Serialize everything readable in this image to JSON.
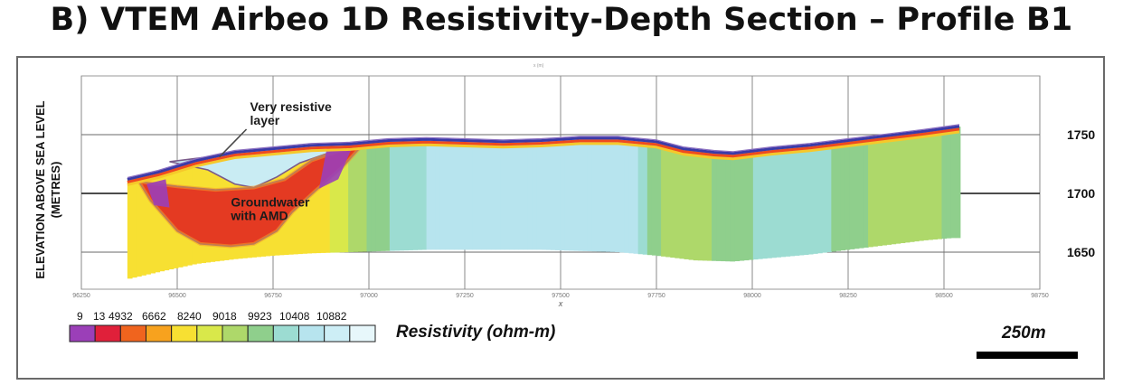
{
  "title": "B) VTEM Airbeo 1D Resistivity-Depth Section – Profile B1",
  "top_axis_label": "x (m)",
  "chart_data": {
    "type": "heatmap",
    "title": "B) VTEM Airbeo 1D Resistivity-Depth Section – Profile B1",
    "ylabel": "ELEVATION ABOVE SEA LEVEL (METRES)",
    "xlabel": "X",
    "x_ticks": [
      96250,
      96500,
      96750,
      97000,
      97250,
      97500,
      97750,
      98000,
      98250,
      98500,
      98750
    ],
    "x_tick_labels": [
      "96250",
      "96500",
      "96750",
      "97000",
      "97250",
      "97500",
      "97750",
      "98000",
      "98250",
      "98500",
      "98750"
    ],
    "y_ticks": [
      1650,
      1700,
      1750
    ],
    "y_tick_labels": [
      "1650",
      "1700",
      "1750"
    ],
    "xlim": [
      96250,
      98750
    ],
    "ylim": [
      1610,
      1800
    ],
    "grid": true,
    "surface_profile": [
      [
        96370,
        1712
      ],
      [
        96450,
        1718
      ],
      [
        96550,
        1728
      ],
      [
        96650,
        1735
      ],
      [
        96750,
        1738
      ],
      [
        96850,
        1741
      ],
      [
        96950,
        1742
      ],
      [
        97050,
        1745
      ],
      [
        97150,
        1746
      ],
      [
        97250,
        1745
      ],
      [
        97350,
        1744
      ],
      [
        97450,
        1745
      ],
      [
        97550,
        1747
      ],
      [
        97650,
        1747
      ],
      [
        97750,
        1744
      ],
      [
        97820,
        1738
      ],
      [
        97900,
        1735
      ],
      [
        97950,
        1734
      ],
      [
        98050,
        1738
      ],
      [
        98150,
        1741
      ],
      [
        98250,
        1745
      ],
      [
        98350,
        1749
      ],
      [
        98450,
        1753
      ],
      [
        98540,
        1757
      ]
    ],
    "base_profile": [
      [
        96370,
        1627
      ],
      [
        96450,
        1633
      ],
      [
        96550,
        1640
      ],
      [
        96650,
        1644
      ],
      [
        96750,
        1647
      ],
      [
        96850,
        1649
      ],
      [
        96950,
        1650
      ],
      [
        97050,
        1651
      ],
      [
        97150,
        1652
      ],
      [
        97250,
        1652
      ],
      [
        97350,
        1652
      ],
      [
        97450,
        1652
      ],
      [
        97550,
        1651
      ],
      [
        97650,
        1650
      ],
      [
        97750,
        1647
      ],
      [
        97850,
        1643
      ],
      [
        97950,
        1642
      ],
      [
        98050,
        1645
      ],
      [
        98150,
        1648
      ],
      [
        98250,
        1652
      ],
      [
        98350,
        1656
      ],
      [
        98450,
        1660
      ],
      [
        98520,
        1662
      ]
    ],
    "column_resistivity": [
      [
        96370,
        6662
      ],
      [
        96500,
        4932
      ],
      [
        96650,
        4932
      ],
      [
        96800,
        4932
      ],
      [
        96900,
        6662
      ],
      [
        96950,
        8240
      ],
      [
        97000,
        9018
      ],
      [
        97050,
        9923
      ],
      [
        97150,
        10408
      ],
      [
        97300,
        10408
      ],
      [
        97450,
        10408
      ],
      [
        97600,
        10408
      ],
      [
        97700,
        10408
      ],
      [
        97800,
        8240
      ],
      [
        97900,
        9018
      ],
      [
        98000,
        9923
      ],
      [
        98150,
        10408
      ],
      [
        98300,
        9018
      ],
      [
        98400,
        8240
      ],
      [
        98500,
        9018
      ]
    ],
    "zones": [
      {
        "label": "Groundwater with AMD",
        "resistivity": 9,
        "outline": [
          [
            96400,
            1710
          ],
          [
            96430,
            1694
          ],
          [
            96500,
            1668
          ],
          [
            96560,
            1657
          ],
          [
            96640,
            1655
          ],
          [
            96700,
            1657
          ],
          [
            96760,
            1668
          ],
          [
            96800,
            1684
          ],
          [
            96860,
            1702
          ],
          [
            96930,
            1722
          ],
          [
            96980,
            1740
          ],
          [
            96920,
            1736
          ],
          [
            96850,
            1728
          ],
          [
            96780,
            1712
          ],
          [
            96700,
            1705
          ],
          [
            96600,
            1703
          ],
          [
            96500,
            1706
          ]
        ]
      },
      {
        "label": "Very resistive layer",
        "resistivity": 10882,
        "outline": [
          [
            96480,
            1727
          ],
          [
            96580,
            1731
          ],
          [
            96700,
            1737
          ],
          [
            96800,
            1740
          ],
          [
            96900,
            1742
          ],
          [
            96980,
            1742
          ],
          [
            96900,
            1735
          ],
          [
            96820,
            1726
          ],
          [
            96760,
            1714
          ],
          [
            96700,
            1705
          ],
          [
            96650,
            1708
          ],
          [
            96580,
            1720
          ]
        ]
      }
    ],
    "annotations": [
      {
        "text_lines": [
          "Very resistive",
          "layer"
        ],
        "x": 96690,
        "y": 1770,
        "points_to": [
          96610,
          1731
        ]
      },
      {
        "text_lines": [
          "Groundwater",
          "with AMD"
        ],
        "x": 96640,
        "y": 1689
      }
    ],
    "colorbar": {
      "title": "Resistivity (ohm-m)",
      "labels": [
        "9",
        "13",
        "4932",
        "6662",
        "8240",
        "9018",
        "9923",
        "10408",
        "10882"
      ],
      "colors": [
        "#9b3fb8",
        "#e0203a",
        "#f0641e",
        "#f7a21e",
        "#f7e032",
        "#d9e84a",
        "#aed86a",
        "#8fcf8c",
        "#9cdcd2",
        "#b7e4ee",
        "#cdeef6",
        "#e7f7fb"
      ]
    },
    "scale_bar_label": "250m"
  }
}
